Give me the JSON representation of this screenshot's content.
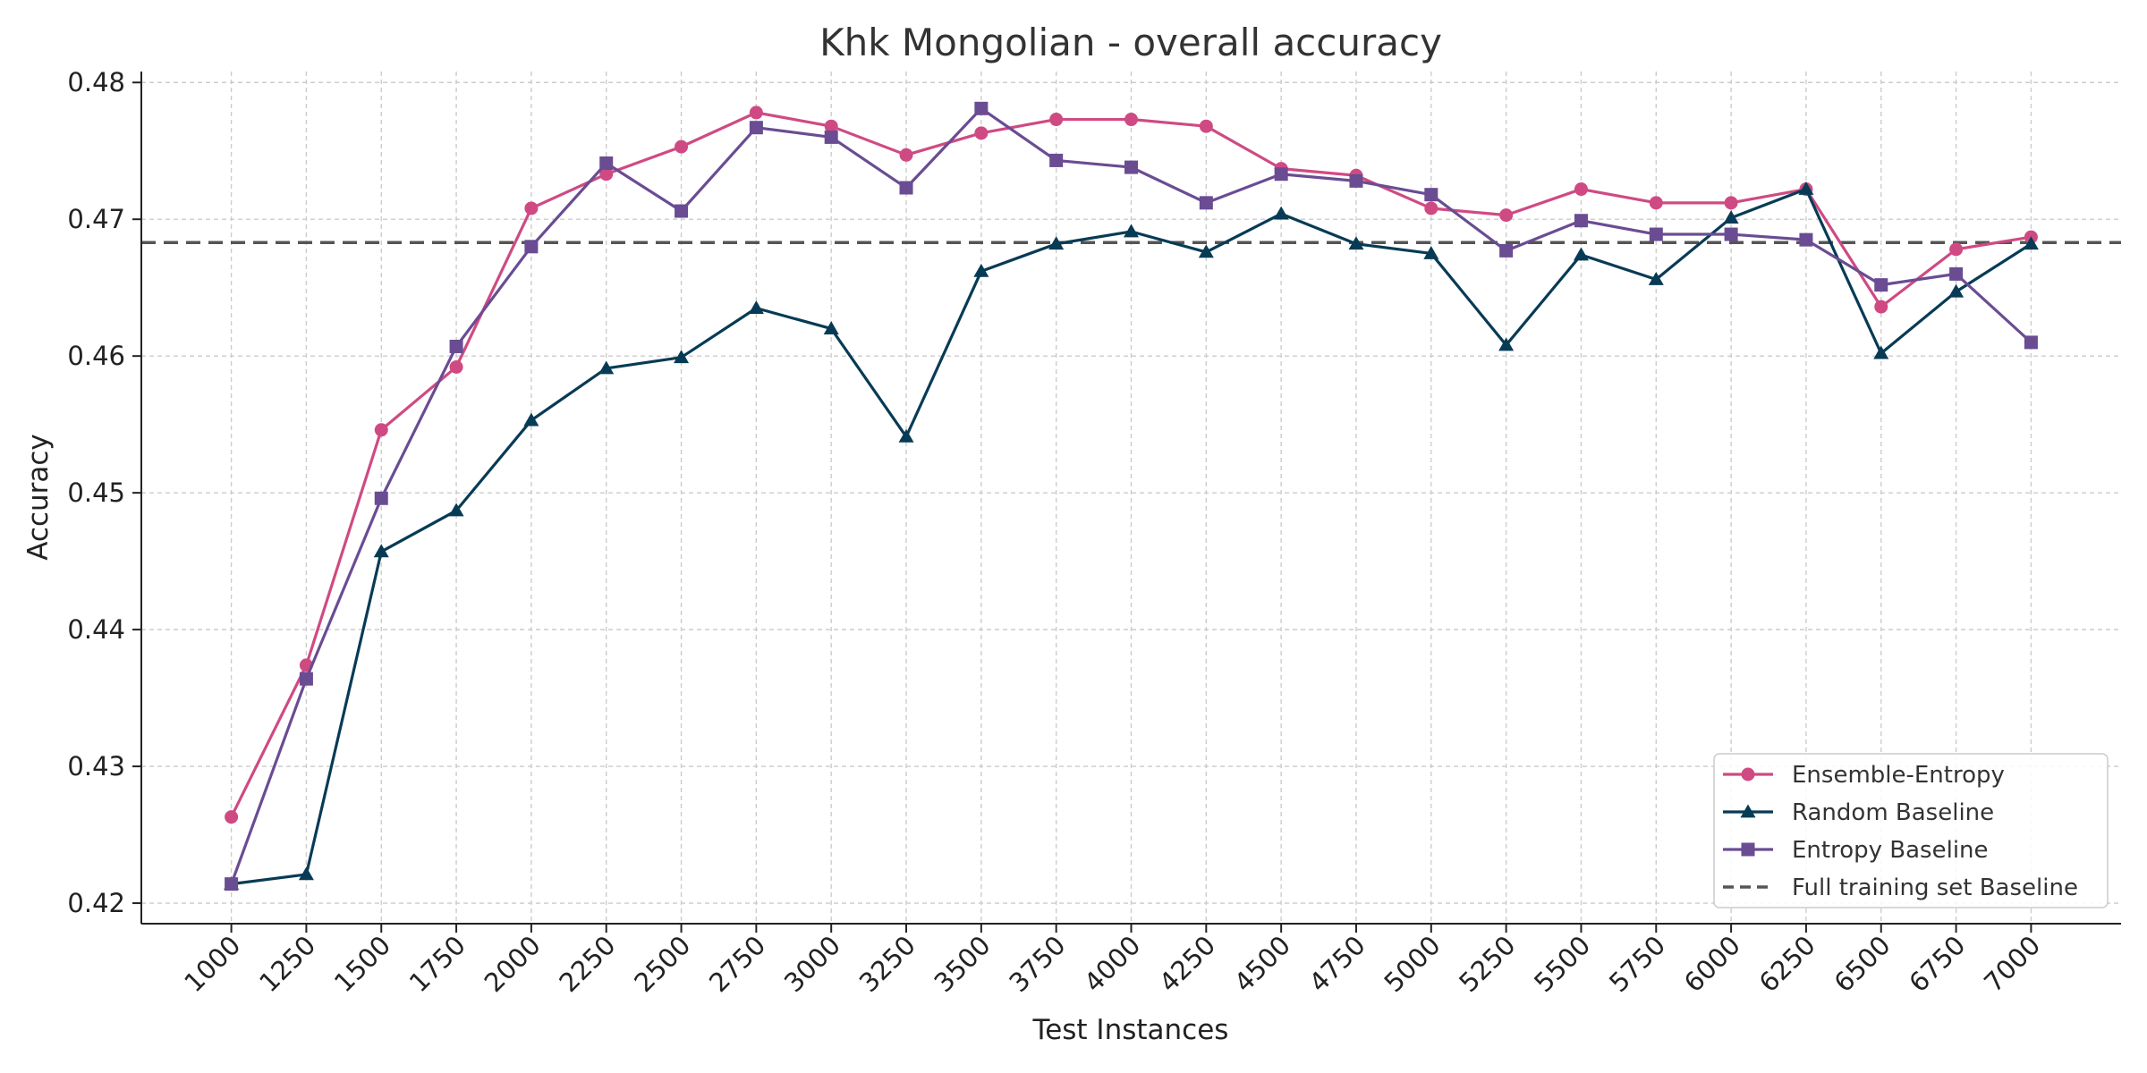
{
  "chart_data": {
    "type": "line",
    "title": "Khk Mongolian - overall accuracy",
    "xlabel": "Test Instances",
    "ylabel": "Accuracy",
    "x": [
      1000,
      1250,
      1500,
      1750,
      2000,
      2250,
      2500,
      2750,
      3000,
      3250,
      3500,
      3750,
      4000,
      4250,
      4500,
      4750,
      5000,
      5250,
      5500,
      5750,
      6000,
      6250,
      6500,
      6750,
      7000
    ],
    "xlim": [
      700,
      7300
    ],
    "ylim": [
      0.4185,
      0.4808
    ],
    "yticks": [
      0.42,
      0.43,
      0.44,
      0.45,
      0.46,
      0.47,
      0.48
    ],
    "ytick_labels": [
      "0.42",
      "0.43",
      "0.44",
      "0.45",
      "0.46",
      "0.47",
      "0.48"
    ],
    "grid": true,
    "legend_position": "bottom-right",
    "series": [
      {
        "name": "Ensemble-Entropy",
        "color": "#cf4a83",
        "marker": "circle",
        "values": [
          0.4263,
          0.4374,
          0.4546,
          0.4592,
          0.4708,
          0.4733,
          0.4753,
          0.4778,
          0.4768,
          0.4747,
          0.4763,
          0.4773,
          0.4773,
          0.4768,
          0.4737,
          0.4732,
          0.4708,
          0.4703,
          0.4722,
          0.4712,
          0.4712,
          0.4722,
          0.4636,
          0.4678,
          0.4687
        ]
      },
      {
        "name": "Random Baseline",
        "color": "#073b55",
        "marker": "triangle",
        "values": [
          0.4214,
          0.4221,
          0.4457,
          0.4487,
          0.4553,
          0.4591,
          0.4599,
          0.4635,
          0.462,
          0.4541,
          0.4662,
          0.4682,
          0.4691,
          0.4676,
          0.4704,
          0.4682,
          0.4675,
          0.4608,
          0.4674,
          0.4656,
          0.4701,
          0.4722,
          0.4602,
          0.4647,
          0.4682
        ]
      },
      {
        "name": "Entropy Baseline",
        "color": "#6a4c93",
        "marker": "square",
        "values": [
          0.4214,
          0.4364,
          0.4496,
          0.4607,
          0.468,
          0.4741,
          0.4706,
          0.4767,
          0.476,
          0.4723,
          0.4781,
          0.4743,
          0.4738,
          0.4712,
          0.4733,
          0.4728,
          0.4718,
          0.4677,
          0.4699,
          0.4689,
          0.4689,
          0.4685,
          0.4652,
          0.466,
          0.461
        ]
      }
    ],
    "reference_lines": [
      {
        "name": "Full training set Baseline",
        "value": 0.4683,
        "color": "#555555",
        "style": "dashed"
      }
    ]
  }
}
